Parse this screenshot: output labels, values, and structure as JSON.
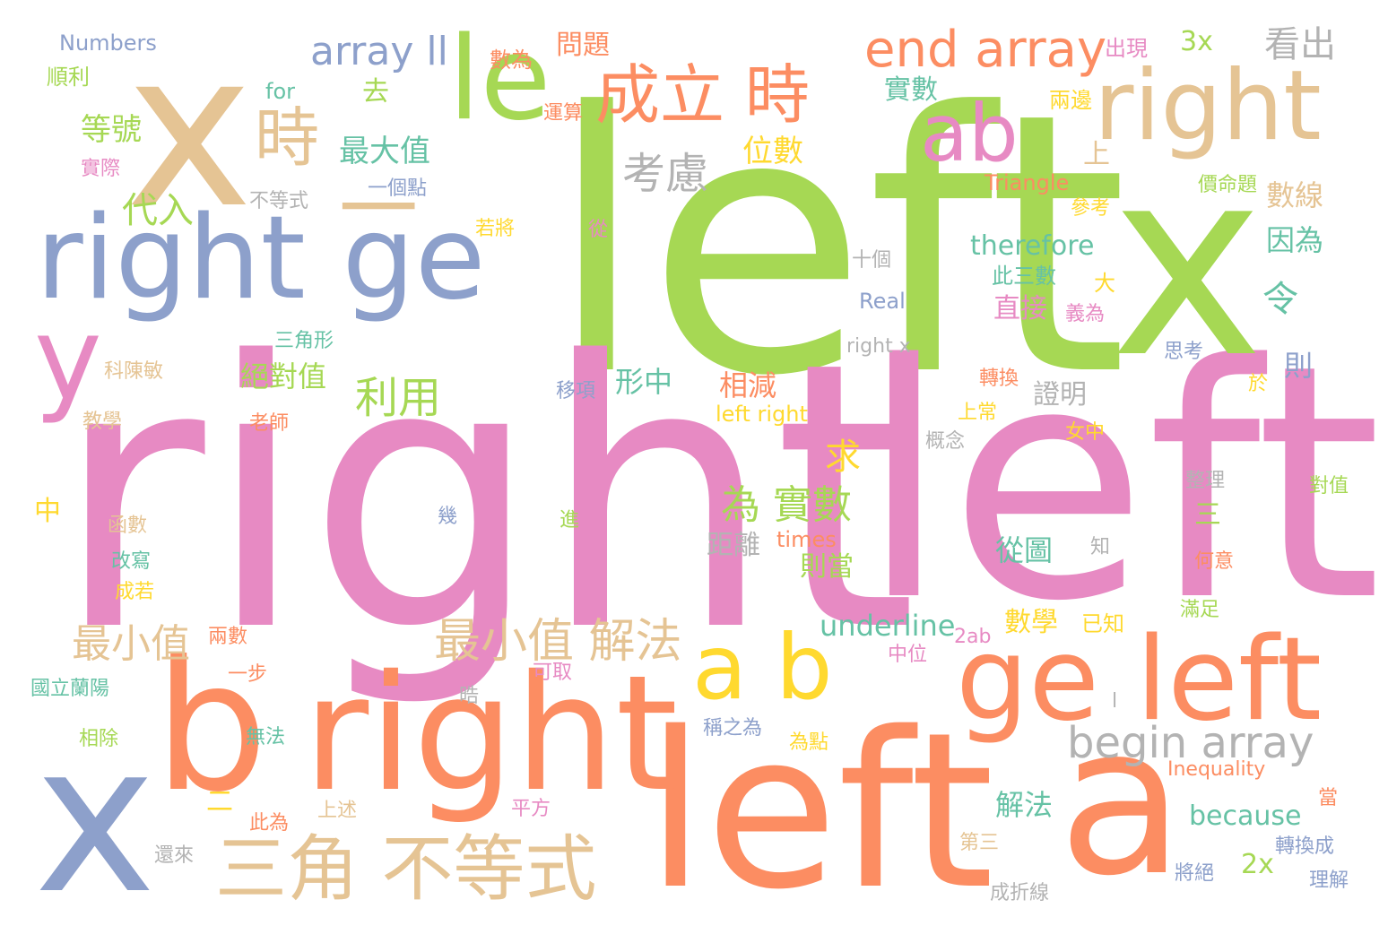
{
  "palette": {
    "green": "#a6d854",
    "pink": "#e78ac3",
    "orange": "#fc8d62",
    "blue": "#8da0cb",
    "tan": "#e5c494",
    "yellow": "#ffd92f",
    "teal": "#66c2a5",
    "gray": "#b3b3b3"
  },
  "words": [
    {
      "text": "left",
      "color": "#a6d854"
    },
    {
      "text": "right",
      "color": "#e78ac3"
    },
    {
      "text": "left",
      "color": "#e78ac3"
    },
    {
      "text": "left",
      "color": "#fc8d62"
    },
    {
      "text": "x",
      "color": "#a6d854"
    },
    {
      "text": "x",
      "color": "#e5c494"
    },
    {
      "text": "x",
      "color": "#8da0cb"
    },
    {
      "text": "a",
      "color": "#fc8d62"
    },
    {
      "text": "b",
      "color": "#fc8d62"
    },
    {
      "text": "right",
      "color": "#fc8d62"
    },
    {
      "text": "right ge",
      "color": "#8da0cb"
    },
    {
      "text": "ge left",
      "color": "#fc8d62"
    },
    {
      "text": "le",
      "color": "#a6d854"
    },
    {
      "text": "right",
      "color": "#e5c494"
    },
    {
      "text": "y",
      "color": "#e78ac3"
    },
    {
      "text": "a b",
      "color": "#ffd92f"
    },
    {
      "text": "ab",
      "color": "#e78ac3"
    },
    {
      "text": "成立 時",
      "color": "#fc8d62"
    },
    {
      "text": "時",
      "color": "#e5c494"
    },
    {
      "text": "三角 不等式",
      "color": "#e5c494"
    },
    {
      "text": "一",
      "color": "#e5c494"
    },
    {
      "text": "end array",
      "color": "#fc8d62"
    },
    {
      "text": "array ll",
      "color": "#8da0cb"
    },
    {
      "text": "begin array",
      "color": "#b3b3b3"
    },
    {
      "text": "最小值 解法",
      "color": "#e5c494"
    },
    {
      "text": "考慮",
      "color": "#b3b3b3"
    },
    {
      "text": "看出",
      "color": "#b3b3b3"
    },
    {
      "text": "利用",
      "color": "#a6d854"
    },
    {
      "text": "最小值",
      "color": "#e5c494"
    },
    {
      "text": "為 實數",
      "color": "#a6d854"
    },
    {
      "text": "3x",
      "color": "#a6d854"
    },
    {
      "text": "問題",
      "color": "#fc8d62"
    },
    {
      "text": "數為",
      "color": "#fc8d62"
    },
    {
      "text": "出現",
      "color": "#e78ac3"
    },
    {
      "text": "Numbers",
      "color": "#8da0cb"
    },
    {
      "text": "順利",
      "color": "#a6d854"
    },
    {
      "text": "for",
      "color": "#66c2a5"
    },
    {
      "text": "去",
      "color": "#a6d854"
    },
    {
      "text": "等號",
      "color": "#a6d854"
    },
    {
      "text": "實際",
      "color": "#e78ac3"
    },
    {
      "text": "不等式",
      "color": "#b3b3b3"
    },
    {
      "text": "最大值",
      "color": "#66c2a5"
    },
    {
      "text": "一個點",
      "color": "#8da0cb"
    },
    {
      "text": "代入",
      "color": "#a6d854"
    },
    {
      "text": "若將",
      "color": "#ffd92f"
    },
    {
      "text": "運算",
      "color": "#fc8d62"
    },
    {
      "text": "位數",
      "color": "#ffd92f"
    },
    {
      "text": "實數",
      "color": "#66c2a5"
    },
    {
      "text": "兩邊",
      "color": "#ffd92f"
    },
    {
      "text": "上",
      "color": "#e5c494"
    },
    {
      "text": "Triangle",
      "color": "#fc8d62"
    },
    {
      "text": "價命題",
      "color": "#a6d854"
    },
    {
      "text": "參考",
      "color": "#ffd92f"
    },
    {
      "text": "數線",
      "color": "#e5c494"
    },
    {
      "text": "從",
      "color": "#e78ac3"
    },
    {
      "text": "therefore",
      "color": "#66c2a5"
    },
    {
      "text": "因為",
      "color": "#66c2a5"
    },
    {
      "text": "十個",
      "color": "#b3b3b3"
    },
    {
      "text": "此三數",
      "color": "#66c2a5"
    },
    {
      "text": "大",
      "color": "#ffd92f"
    },
    {
      "text": "令",
      "color": "#66c2a5"
    },
    {
      "text": "Real",
      "color": "#8da0cb"
    },
    {
      "text": "直接",
      "color": "#e78ac3"
    },
    {
      "text": "義為",
      "color": "#e78ac3"
    },
    {
      "text": "三角形",
      "color": "#66c2a5"
    },
    {
      "text": "right x",
      "color": "#b3b3b3"
    },
    {
      "text": "思考",
      "color": "#8da0cb"
    },
    {
      "text": "科陳敏",
      "color": "#e5c494"
    },
    {
      "text": "絕對值",
      "color": "#a6d854"
    },
    {
      "text": "移項",
      "color": "#8da0cb"
    },
    {
      "text": "形中",
      "color": "#66c2a5"
    },
    {
      "text": "相減",
      "color": "#fc8d62"
    },
    {
      "text": "轉換",
      "color": "#fc8d62"
    },
    {
      "text": "於",
      "color": "#ffd92f"
    },
    {
      "text": "則",
      "color": "#8da0cb"
    },
    {
      "text": "證明",
      "color": "#b3b3b3"
    },
    {
      "text": "教學",
      "color": "#e5c494"
    },
    {
      "text": "老師",
      "color": "#fc8d62"
    },
    {
      "text": "left right",
      "color": "#ffd92f"
    },
    {
      "text": "上常",
      "color": "#ffd92f"
    },
    {
      "text": "概念",
      "color": "#b3b3b3"
    },
    {
      "text": "女中",
      "color": "#ffd92f"
    },
    {
      "text": "求",
      "color": "#ffd92f"
    },
    {
      "text": "整理",
      "color": "#b3b3b3"
    },
    {
      "text": "對值",
      "color": "#a6d854"
    },
    {
      "text": "中",
      "color": "#ffd92f"
    },
    {
      "text": "幾",
      "color": "#8da0cb"
    },
    {
      "text": "進",
      "color": "#a6d854"
    },
    {
      "text": "三",
      "color": "#a6d854"
    },
    {
      "text": "函數",
      "color": "#e5c494"
    },
    {
      "text": "距離",
      "color": "#b3b3b3"
    },
    {
      "text": "times",
      "color": "#fc8d62"
    },
    {
      "text": "從圖",
      "color": "#66c2a5"
    },
    {
      "text": "知",
      "color": "#b3b3b3"
    },
    {
      "text": "改寫",
      "color": "#66c2a5"
    },
    {
      "text": "則當",
      "color": "#a6d854"
    },
    {
      "text": "何意",
      "color": "#fc8d62"
    },
    {
      "text": "成若",
      "color": "#ffd92f"
    },
    {
      "text": "滿足",
      "color": "#a6d854"
    },
    {
      "text": "兩數",
      "color": "#fc8d62"
    },
    {
      "text": "underline",
      "color": "#66c2a5"
    },
    {
      "text": "2ab",
      "color": "#e78ac3"
    },
    {
      "text": "數學",
      "color": "#ffd92f"
    },
    {
      "text": "已知",
      "color": "#ffd92f"
    },
    {
      "text": "中位",
      "color": "#e78ac3"
    },
    {
      "text": "一步",
      "color": "#fc8d62"
    },
    {
      "text": "可取",
      "color": "#e78ac3"
    },
    {
      "text": "國立蘭陽",
      "color": "#66c2a5"
    },
    {
      "text": "晧",
      "color": "#b3b3b3"
    },
    {
      "text": "l",
      "color": "#b3b3b3"
    },
    {
      "text": "相除",
      "color": "#a6d854"
    },
    {
      "text": "無法",
      "color": "#66c2a5"
    },
    {
      "text": "稱之為",
      "color": "#8da0cb"
    },
    {
      "text": "為點",
      "color": "#ffd92f"
    },
    {
      "text": "解法",
      "color": "#66c2a5"
    },
    {
      "text": "because",
      "color": "#66c2a5"
    },
    {
      "text": "Inequality",
      "color": "#fc8d62"
    },
    {
      "text": "當",
      "color": "#fc8d62"
    },
    {
      "text": "二",
      "color": "#ffd92f"
    },
    {
      "text": "此為",
      "color": "#fc8d62"
    },
    {
      "text": "上述",
      "color": "#e5c494"
    },
    {
      "text": "平方",
      "color": "#e78ac3"
    },
    {
      "text": "第三",
      "color": "#e5c494"
    },
    {
      "text": "2x",
      "color": "#a6d854"
    },
    {
      "text": "轉換成",
      "color": "#8da0cb"
    },
    {
      "text": "還來",
      "color": "#b3b3b3"
    },
    {
      "text": "將絕",
      "color": "#8da0cb"
    },
    {
      "text": "理解",
      "color": "#8da0cb"
    },
    {
      "text": "成折線",
      "color": "#b3b3b3"
    }
  ]
}
